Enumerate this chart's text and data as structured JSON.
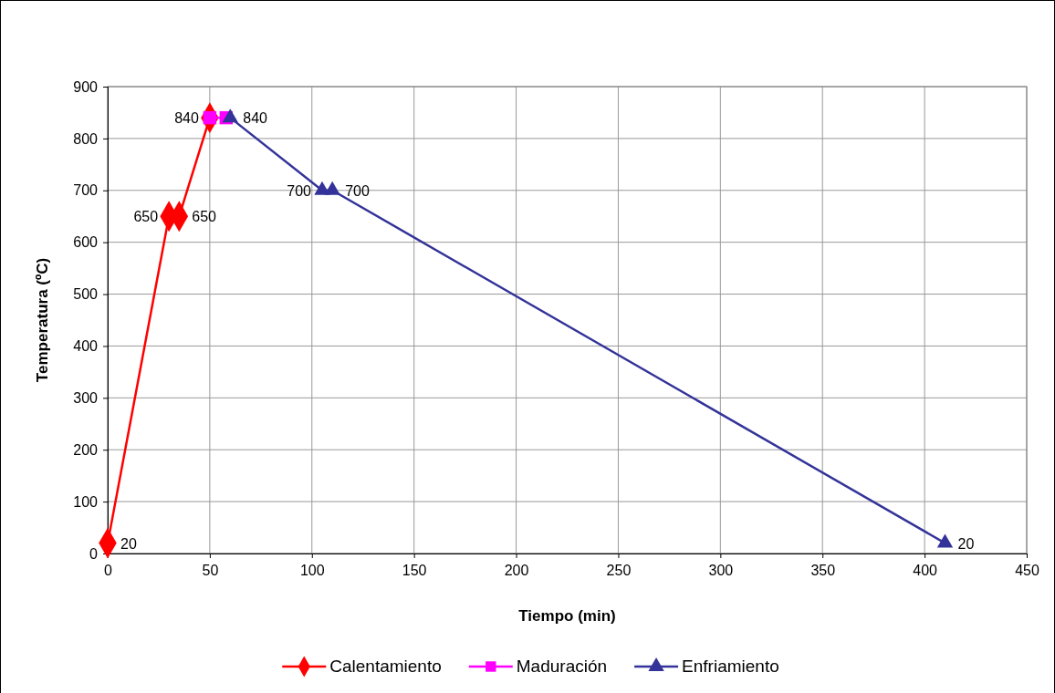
{
  "chart_data": {
    "type": "line",
    "xlabel": "Tiempo (min)",
    "ylabel": "Temperatura (ºC)",
    "xlim": [
      0,
      450
    ],
    "xticks": [
      0,
      50,
      100,
      150,
      200,
      250,
      300,
      350,
      400,
      450
    ],
    "ylim": [
      0,
      900
    ],
    "yticks": [
      0,
      100,
      200,
      300,
      400,
      500,
      600,
      700,
      800,
      900
    ],
    "grid": true,
    "legend": "bottom",
    "series": [
      {
        "name": "Calentamiento",
        "color": "#ff0000",
        "marker": "diamond",
        "x": [
          0,
          30,
          35,
          50
        ],
        "values": [
          20,
          650,
          650,
          840
        ],
        "value_labels": [
          "20",
          "650",
          "650",
          null
        ]
      },
      {
        "name": "Maduración",
        "color": "#ff00ff",
        "marker": "square",
        "x": [
          50,
          58
        ],
        "values": [
          840,
          840
        ],
        "value_labels": [
          "840",
          null
        ]
      },
      {
        "name": "Enfriamiento",
        "color": "#333399",
        "marker": "triangle",
        "x": [
          60,
          105,
          110,
          410
        ],
        "values": [
          840,
          700,
          700,
          20
        ],
        "value_labels": [
          "840",
          "700",
          "700",
          "20"
        ]
      }
    ]
  }
}
